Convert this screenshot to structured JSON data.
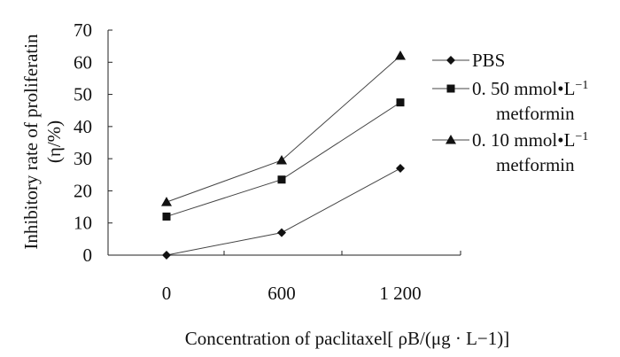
{
  "chart_data": {
    "type": "line",
    "title": "",
    "xlabel": "Concentration of paclitaxel[ ρB/(μg · L−1)]",
    "ylabel": "Inhibitory rate of proliferatin",
    "ylabel_unit": "(η/%)",
    "categories": [
      "0",
      "600",
      "1 200"
    ],
    "ylim": [
      0,
      70
    ],
    "yticks": [
      "0",
      "10",
      "20",
      "30",
      "40",
      "50",
      "60",
      "70"
    ],
    "grid": false,
    "legend": "right",
    "series": [
      {
        "name": "PBS",
        "name_line2": "",
        "marker": "diamond",
        "values": [
          0,
          7,
          27
        ]
      },
      {
        "name": "0. 50 mmol•L",
        "name_sup": "−1",
        "name_line2": "metformin",
        "marker": "square",
        "values": [
          12,
          23.5,
          47.5
        ]
      },
      {
        "name": "0. 10 mmol•L",
        "name_sup": "−1",
        "name_line2": "metformin",
        "marker": "triangle",
        "values": [
          16.5,
          29.5,
          62
        ]
      }
    ]
  }
}
